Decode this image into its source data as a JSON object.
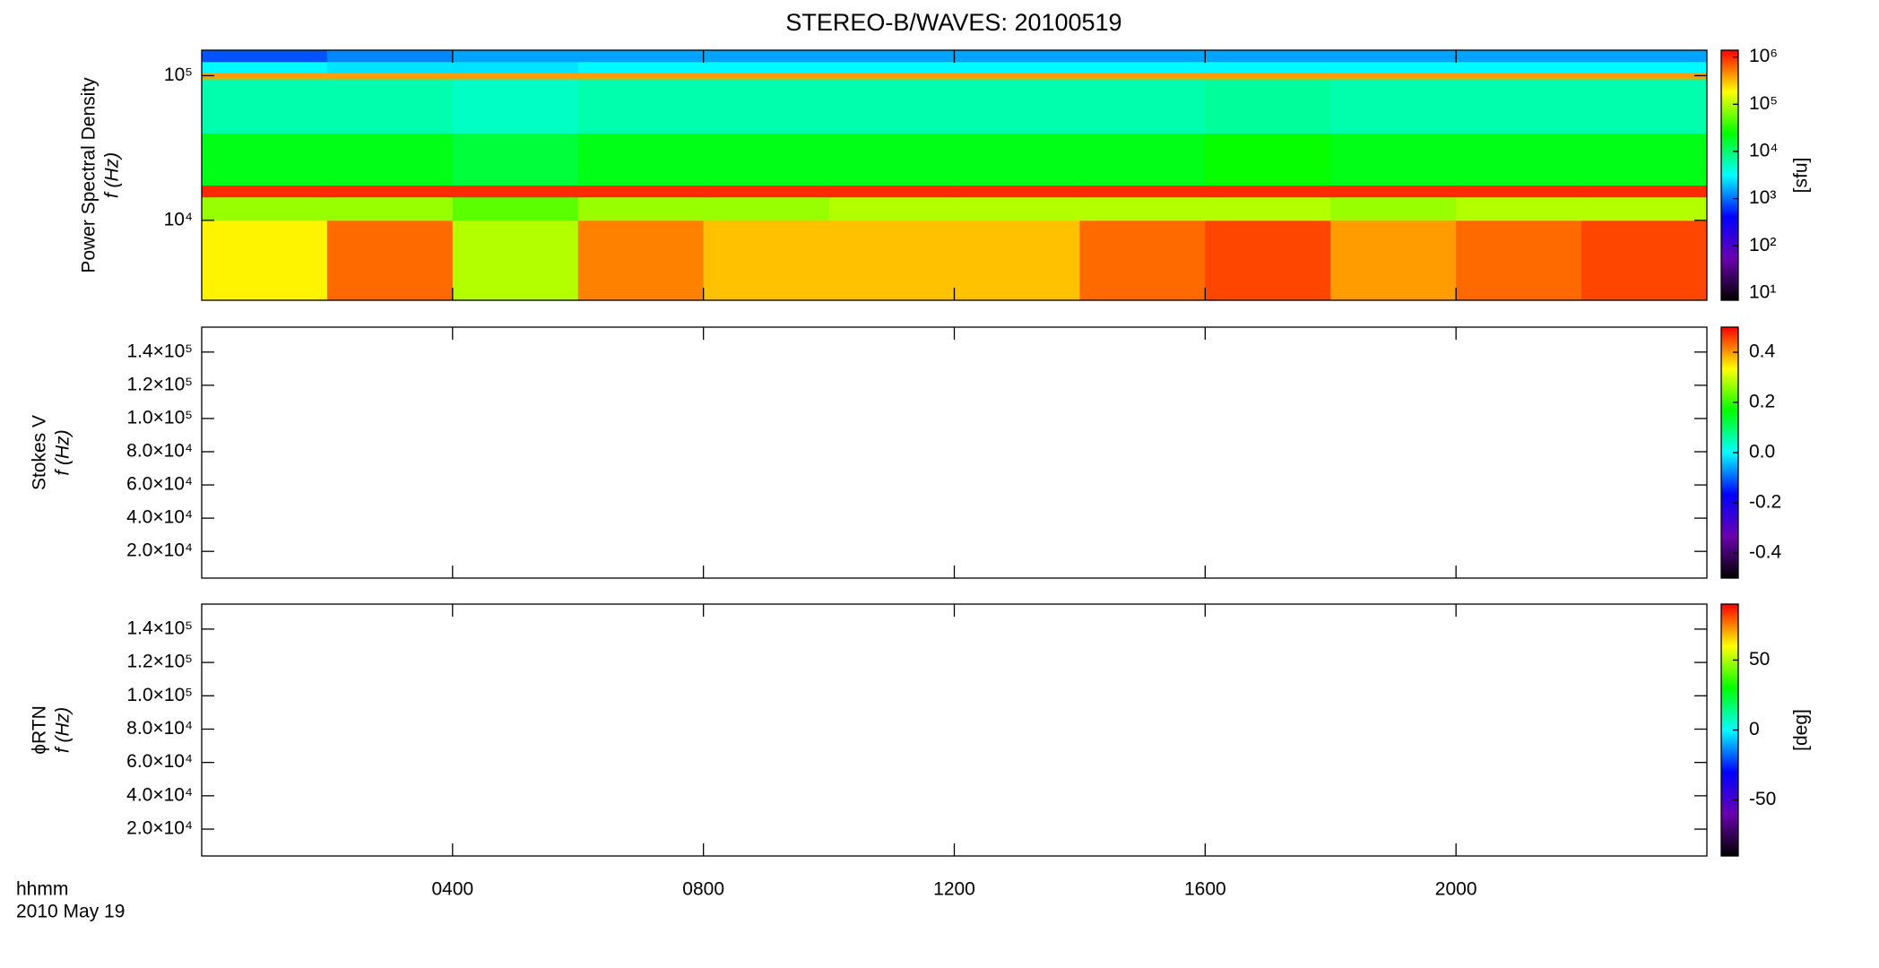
{
  "chart_data": [
    {
      "type": "heatmap",
      "title": "STEREO-B/WAVES: 20100519",
      "ylabel": [
        "Power Spectral Density",
        "f (Hz)"
      ],
      "log_y": true,
      "ylim": [
        2800,
        150000
      ],
      "yticks": [
        {
          "value": 10000,
          "label": "10⁴"
        },
        {
          "value": 100000,
          "label": "10⁵"
        }
      ],
      "x_edges": [
        0,
        2,
        4,
        6,
        8,
        10,
        12,
        14,
        16,
        18,
        20,
        22,
        24
      ],
      "y_edges": [
        2800,
        10000,
        14500,
        17500,
        40000,
        95000,
        105000,
        125000,
        150000
      ],
      "z": [
        [
          200000,
          600000,
          100000,
          500000,
          300000,
          300000,
          300000,
          600000,
          800000,
          400000,
          600000,
          800000
        ],
        [
          80000,
          80000,
          50000,
          80000,
          80000,
          100000,
          100000,
          100000,
          100000,
          80000,
          100000,
          100000
        ],
        [
          1000000,
          1000000,
          1000000,
          1000000,
          1000000,
          1000000,
          1000000,
          1000000,
          1000000,
          1000000,
          1000000,
          1000000
        ],
        [
          20000,
          20000,
          15000,
          20000,
          20000,
          20000,
          20000,
          20000,
          25000,
          20000,
          20000,
          20000
        ],
        [
          6000,
          6000,
          5000,
          6000,
          6000,
          6000,
          6000,
          6000,
          7000,
          6000,
          6000,
          6000
        ],
        [
          400000,
          400000,
          400000,
          400000,
          400000,
          400000,
          400000,
          400000,
          400000,
          400000,
          400000,
          400000
        ],
        [
          3000,
          2500,
          2500,
          3000,
          3000,
          3000,
          3000,
          3000,
          3000,
          3000,
          3000,
          3000
        ],
        [
          800,
          1200,
          1500,
          1500,
          1500,
          1500,
          1500,
          1500,
          1500,
          1500,
          1500,
          1500
        ]
      ],
      "colormap": [
        "#000000",
        "#6a00b0",
        "#0000ff",
        "#00ffff",
        "#00ff00",
        "#ffff00",
        "#ff0000"
      ],
      "colorbar": {
        "log": true,
        "clim": [
          7,
          1400000
        ],
        "label": "[sfu]",
        "ticks": [
          {
            "value": 10,
            "label": "10¹"
          },
          {
            "value": 100,
            "label": "10²"
          },
          {
            "value": 1000,
            "label": "10³"
          },
          {
            "value": 10000,
            "label": "10⁴"
          },
          {
            "value": 100000,
            "label": "10⁵"
          },
          {
            "value": 1000000,
            "label": "10⁶"
          }
        ]
      }
    },
    {
      "type": "heatmap",
      "ylabel": [
        "Stokes V",
        "f (Hz)"
      ],
      "log_y": false,
      "ylim": [
        3900,
        155000
      ],
      "yticks": [
        {
          "value": 20000,
          "label": "2.0×10⁴"
        },
        {
          "value": 40000,
          "label": "4.0×10⁴"
        },
        {
          "value": 60000,
          "label": "6.0×10⁴"
        },
        {
          "value": 80000,
          "label": "8.0×10⁴"
        },
        {
          "value": 100000,
          "label": "1.0×10⁵"
        },
        {
          "value": 120000,
          "label": "1.2×10⁵"
        },
        {
          "value": 140000,
          "label": "1.4×10⁵"
        }
      ],
      "colormap": [
        "#000000",
        "#6a00b0",
        "#0000ff",
        "#00ffff",
        "#00ff00",
        "#ffff00",
        "#ff0000"
      ],
      "colorbar": {
        "log": false,
        "clim": [
          -0.5,
          0.5
        ],
        "ticks": [
          -0.4,
          -0.2,
          {
            "value": 0,
            "label": "0.0"
          },
          0.2,
          0.4
        ]
      }
    },
    {
      "type": "heatmap",
      "ylabel": [
        "ϕRTN",
        "f (Hz)"
      ],
      "log_y": false,
      "ylim": [
        3900,
        155000
      ],
      "yticks": [
        {
          "value": 20000,
          "label": "2.0×10⁴"
        },
        {
          "value": 40000,
          "label": "4.0×10⁴"
        },
        {
          "value": 60000,
          "label": "6.0×10⁴"
        },
        {
          "value": 80000,
          "label": "8.0×10⁴"
        },
        {
          "value": 100000,
          "label": "1.0×10⁵"
        },
        {
          "value": 120000,
          "label": "1.2×10⁵"
        },
        {
          "value": 140000,
          "label": "1.4×10⁵"
        }
      ],
      "colormap": [
        "#000000",
        "#6a00b0",
        "#0000ff",
        "#00ffff",
        "#00ff00",
        "#ffff00",
        "#ff0000"
      ],
      "colorbar": {
        "log": false,
        "clim": [
          -90,
          90
        ],
        "label": "[deg]",
        "ticks": [
          -50,
          0,
          50
        ]
      },
      "xlabel": "hhmm",
      "date_label": "2010 May 19",
      "xlim": [
        0,
        24
      ],
      "xticks": [
        {
          "value": 4,
          "label": "0400"
        },
        {
          "value": 8,
          "label": "0800"
        },
        {
          "value": 12,
          "label": "1200"
        },
        {
          "value": 16,
          "label": "1600"
        },
        {
          "value": 20,
          "label": "2000"
        }
      ]
    }
  ]
}
